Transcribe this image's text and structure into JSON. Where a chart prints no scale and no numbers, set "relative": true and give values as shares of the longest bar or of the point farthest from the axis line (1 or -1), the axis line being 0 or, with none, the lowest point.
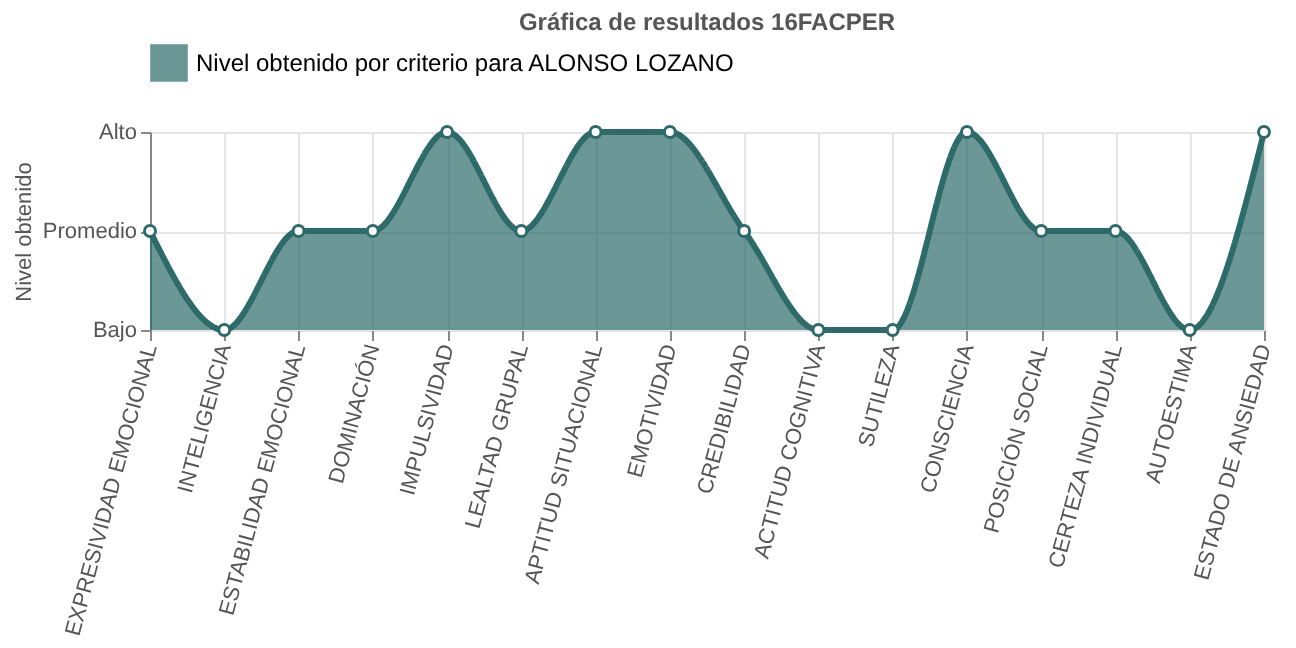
{
  "chart_data": {
    "type": "area",
    "title": "Gráfica de resultados 16FACPER",
    "ylabel": "Nivel obtenido",
    "categories": [
      "EXPRESIVIDAD EMOCIONAL",
      "INTELIGENCIA",
      "ESTABILIDAD EMOCIONAL",
      "DOMINACIÓN",
      "IMPULSIVIDAD",
      "LEALTAD GRUPAL",
      "APTITUD SITUACIONAL",
      "EMOTIVIDAD",
      "CREDIBILIDAD",
      "ACTITUD COGNITIVA",
      "SUTILEZA",
      "CONSCIENCIA",
      "POSICIÓN SOCIAL",
      "CERTEZA INDIVIDUAL",
      "AUTOESTIMA",
      "ESTADO DE ANSIEDAD"
    ],
    "series": [
      {
        "name": "Nivel obtenido por criterio para ALONSO LOZANO",
        "color": "#2d6b6b",
        "values": [
          0.5,
          0,
          0.5,
          0.5,
          1,
          0.5,
          1,
          1,
          0.5,
          0,
          0,
          1,
          0.5,
          0.5,
          0,
          1
        ]
      }
    ],
    "relative": true,
    "y_categories": [
      "Alto",
      "Promedio",
      "Bajo"
    ],
    "grid": true,
    "legend": "top",
    "marker": "circle",
    "line_style": "solid"
  }
}
